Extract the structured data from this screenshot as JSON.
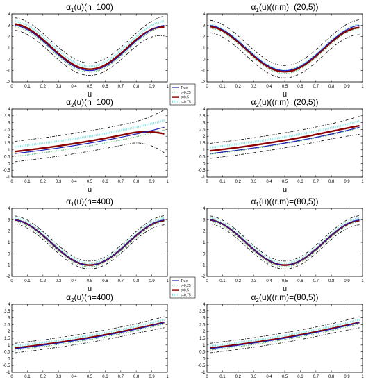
{
  "colors": {
    "true": "#1f1fb4",
    "tau25": "#33aa55",
    "tau50": "#8b0000",
    "tau75": "#66dddd",
    "band": "#000000"
  },
  "legend_labels": [
    "True",
    "τ=0.25",
    "τ=0.5",
    "τ=0.75"
  ],
  "chart_data": [
    {
      "type": "line",
      "name": "p1",
      "title_main": "α",
      "title_sub": "1",
      "title_rest": "(u)(n=100)",
      "xlabel": "u",
      "xlim": [
        0,
        1
      ],
      "ylim": [
        -2,
        4
      ],
      "xticks": [
        "0",
        "0.1",
        "0.2",
        "0.3",
        "0.4",
        "0.5",
        "0.6",
        "0.7",
        "0.8",
        "0.9",
        "1"
      ],
      "yticks": [
        "-2",
        "-1",
        "0",
        "1",
        "2",
        "3",
        "4"
      ],
      "curve": "cos",
      "est_shift": 0.12,
      "est_spread": 0.25,
      "band": 0.55,
      "tail_flare": 0.6
    },
    {
      "type": "line",
      "name": "p2",
      "title_main": "α",
      "title_sub": "1",
      "title_rest": "(u)((r,m)=(20,5))",
      "xlabel": "u",
      "xlim": [
        0,
        1
      ],
      "ylim": [
        -2,
        4
      ],
      "xticks": [
        "0",
        "0.1",
        "0.2",
        "0.3",
        "0.4",
        "0.5",
        "0.6",
        "0.7",
        "0.8",
        "0.9",
        "1"
      ],
      "yticks": [
        "-2",
        "-1",
        "0",
        "1",
        "2",
        "3",
        "4"
      ],
      "curve": "cos",
      "est_shift": -0.1,
      "est_spread": 0.15,
      "band": 0.55,
      "tail_flare": 0.2
    },
    {
      "type": "line",
      "name": "p3",
      "title_main": "α",
      "title_sub": "2",
      "title_rest": "(u)(n=100)",
      "xlabel": "u",
      "xlim": [
        0,
        1
      ],
      "ylim": [
        -1,
        4
      ],
      "xticks": [
        "0",
        "0.1",
        "0.2",
        "0.3",
        "0.4",
        "0.5",
        "0.6",
        "0.7",
        "0.8",
        "0.9",
        "1"
      ],
      "yticks": [
        "-1",
        "-0.5",
        "0",
        "0.5",
        "1",
        "1.5",
        "2",
        "2.5",
        "3",
        "3.5",
        "4"
      ],
      "curve": "exp",
      "est_shift": 0.15,
      "est_spread": 0.35,
      "band": 0.75,
      "tail_flare": 1.5
    },
    {
      "type": "line",
      "name": "p4",
      "title_main": "α",
      "title_sub": "2",
      "title_rest": "(u)((r,m)=(20,5))",
      "xlabel": "u",
      "xlim": [
        0,
        1
      ],
      "ylim": [
        -1,
        4
      ],
      "xticks": [
        "0",
        "0.1",
        "0.2",
        "0.3",
        "0.4",
        "0.5",
        "0.6",
        "0.7",
        "0.8",
        "0.9",
        "1"
      ],
      "yticks": [
        "-1",
        "-0.5",
        "0",
        "0.5",
        "1",
        "1.5",
        "2",
        "2.5",
        "3",
        "3.5",
        "4"
      ],
      "curve": "exp",
      "est_shift": 0.2,
      "est_spread": 0.25,
      "band": 0.55,
      "tail_flare": 0.2
    },
    {
      "type": "line",
      "name": "p5",
      "title_main": "α",
      "title_sub": "1",
      "title_rest": "(u)(n=400)",
      "xlabel": "u",
      "xlim": [
        0,
        1
      ],
      "ylim": [
        -2,
        4
      ],
      "xticks": [
        "0",
        "0.1",
        "0.2",
        "0.3",
        "0.4",
        "0.5",
        "0.6",
        "0.7",
        "0.8",
        "0.9",
        "1"
      ],
      "yticks": [
        "-2",
        "-1",
        "0",
        "1",
        "2",
        "3",
        "4"
      ],
      "curve": "cos",
      "est_shift": 0.0,
      "est_spread": 0.15,
      "band": 0.35,
      "tail_flare": 0.1
    },
    {
      "type": "line",
      "name": "p6",
      "title_main": "α",
      "title_sub": "1",
      "title_rest": "(u)((r,m)=(80,5))",
      "xlabel": "u",
      "xlim": [
        0,
        1
      ],
      "ylim": [
        -2,
        4
      ],
      "xticks": [
        "0",
        "0.1",
        "0.2",
        "0.3",
        "0.4",
        "0.5",
        "0.6",
        "0.7",
        "0.8",
        "0.9",
        "1"
      ],
      "yticks": [
        "-2",
        "-1",
        "0",
        "1",
        "2",
        "3",
        "4"
      ],
      "curve": "cos",
      "est_shift": 0.0,
      "est_spread": 0.15,
      "band": 0.35,
      "tail_flare": 0.1
    },
    {
      "type": "line",
      "name": "p7",
      "title_main": "α",
      "title_sub": "2",
      "title_rest": "(u)(n=400)",
      "xlabel": "u",
      "xlim": [
        0,
        1
      ],
      "ylim": [
        -1,
        4
      ],
      "xticks": [
        "0",
        "0.1",
        "0.2",
        "0.3",
        "0.4",
        "0.5",
        "0.6",
        "0.7",
        "0.8",
        "0.9",
        "1"
      ],
      "yticks": [
        "-1",
        "-0.5",
        "0",
        "0.5",
        "1",
        "1.5",
        "2",
        "2.5",
        "3",
        "3.5",
        "4"
      ],
      "curve": "exp",
      "est_shift": 0.05,
      "est_spread": 0.15,
      "band": 0.35,
      "tail_flare": 0.1
    },
    {
      "type": "line",
      "name": "p8",
      "title_main": "α",
      "title_sub": "2",
      "title_rest": "(u)((r,m)=(80,5))",
      "xlabel": "u",
      "xlim": [
        0,
        1
      ],
      "ylim": [
        -1,
        4
      ],
      "xticks": [
        "0",
        "0.1",
        "0.2",
        "0.3",
        "0.4",
        "0.5",
        "0.6",
        "0.7",
        "0.8",
        "0.9",
        "1"
      ],
      "yticks": [
        "-1",
        "-0.5",
        "0",
        "0.5",
        "1",
        "1.5",
        "2",
        "2.5",
        "3",
        "3.5",
        "4"
      ],
      "curve": "exp",
      "est_shift": 0.05,
      "est_spread": 0.15,
      "band": 0.35,
      "tail_flare": 0.1
    }
  ]
}
